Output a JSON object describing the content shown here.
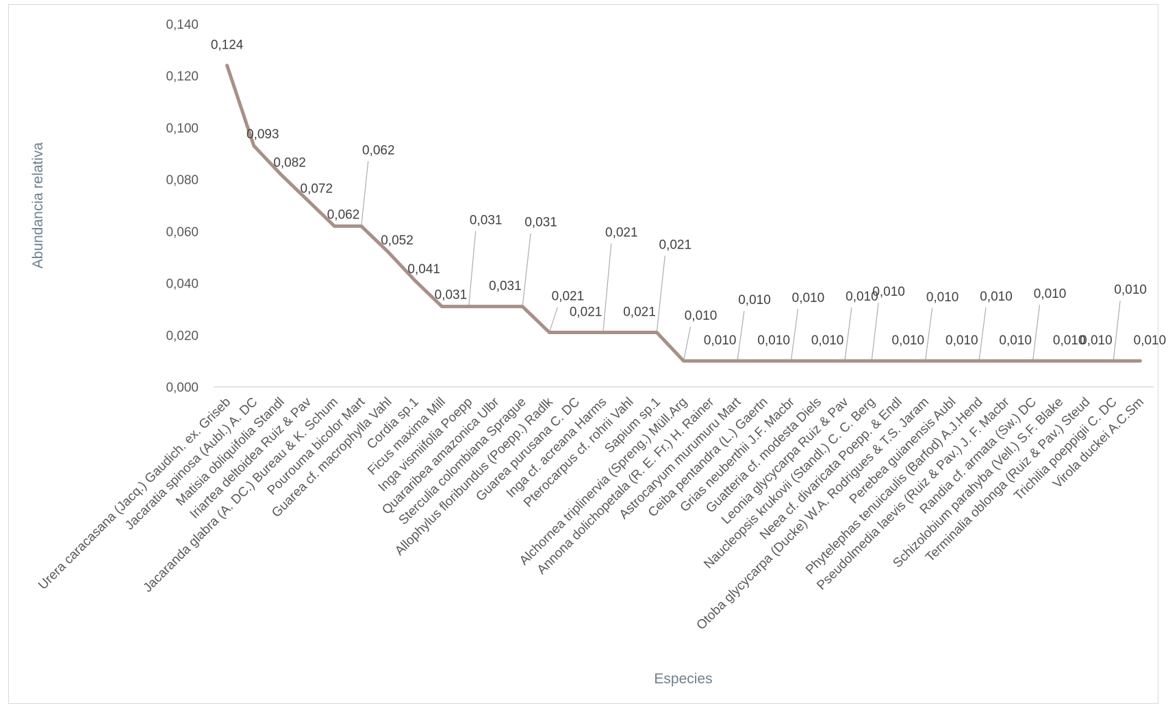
{
  "chart_data": {
    "type": "line",
    "xlabel": "Especies",
    "ylabel": "Abundancia relativa",
    "ylim": [
      0,
      0.14
    ],
    "yticks": [
      "0,000",
      "0,020",
      "0,040",
      "0,060",
      "0,080",
      "0,100",
      "0,120",
      "0,140"
    ],
    "grid": false,
    "legend": "none",
    "line_color": "#a89088",
    "categories": [
      "Urera caracasana (Jacq.) Gaudich. ex. Griseb",
      "Jacaratia spinosa (Aubl.) A. DC",
      "Matisia obliquifolia Standl",
      "Iriartea deltoidea Ruiz & Pav",
      "Jacaranda glabra (A. DC.) Bureau & K. Schum",
      "Pourouma bicolor Mart",
      "Guarea cf. macrophylla Vahl",
      "Cordia sp.1",
      "Ficus maxima Mill",
      "Inga vismiifolia Poepp",
      "Quararibea amazonica Ulbr",
      "Sterculia colombiana Sprague",
      "Allophylus floribundus (Poepp.) Radlk",
      "Guarea purusana C. DC",
      "Inga cf. acreana Harms",
      "Pterocarpus cf. rohrii Vahl",
      "Sapium sp.1",
      "Alchornea triplinervia (Spreng.) Müll.Arg",
      "Annona dolichopetala (R. E. Fr.) H. Rainer",
      "Astrocaryum murumuru Mart",
      "Ceiba pentandra (L.) Gaertn",
      "Grias neuberthii J.F. Macbr",
      "Guatteria cf. modesta Diels",
      "Leonia glycycarpa Ruiz & Pav",
      "Naucleopsis krukovii (Standl.) C. C. Berg",
      "Neea cf. divaricata Poepp. & Endl",
      "Otoba glycycarpa (Ducke) W.A. Rodrigues & T.S. Jaram",
      "Perebea guianensis Aubl",
      "Phytelephas tenuicaulis (Barfod) A.J.Hend",
      "Pseudolmedia laevis (Ruiz & Pav.) J. F. Macbr",
      "Randia cf. armata (Sw.) DC",
      "Schizolobium parahyba (Vell.) S.F. Blake",
      "Terminalia oblonga (Ruiz & Pav.) Steud",
      "Trichilia poeppigii C. DC",
      "Virola duckei A.C.Sm"
    ],
    "values": [
      0.124,
      0.093,
      0.082,
      0.072,
      0.062,
      0.062,
      0.052,
      0.041,
      0.031,
      0.031,
      0.031,
      0.031,
      0.021,
      0.021,
      0.021,
      0.021,
      0.021,
      0.01,
      0.01,
      0.01,
      0.01,
      0.01,
      0.01,
      0.01,
      0.01,
      0.01,
      0.01,
      0.01,
      0.01,
      0.01,
      0.01,
      0.01,
      0.01,
      0.01,
      0.01
    ],
    "data_labels": [
      "0,124",
      "0,093",
      "0,082",
      "0,072",
      "0,062",
      "0,062",
      "0,052",
      "0,041",
      "0,031",
      "0,031",
      "0,031",
      "0,031",
      "0,021",
      "0,021",
      "0,021",
      "0,021",
      "0,021",
      "0,010",
      "0,010",
      "0,010",
      "0,010",
      "0,010",
      "0,010",
      "0,010",
      "0,010",
      "0,010",
      "0,010",
      "0,010",
      "0,010",
      "0,010",
      "0,010",
      "0,010",
      "0,010",
      "0,010",
      "0,010"
    ]
  }
}
